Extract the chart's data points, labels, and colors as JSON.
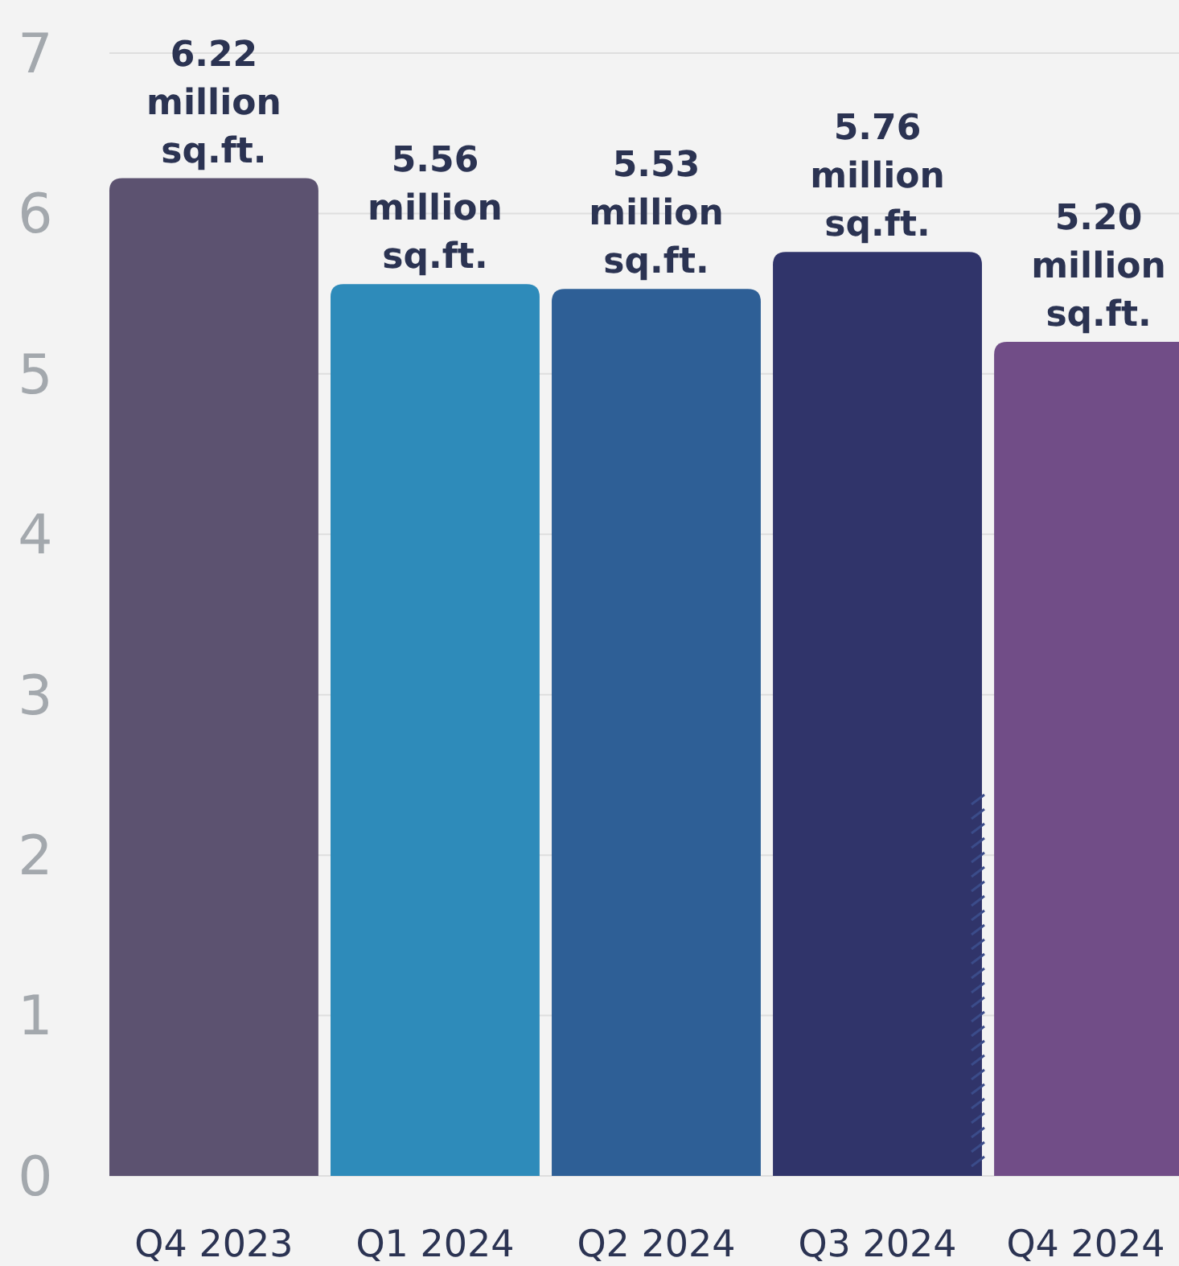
{
  "chart_data": {
    "type": "bar",
    "categories": [
      "Q4 2023",
      "Q1 2024",
      "Q2 2024",
      "Q3 2024",
      "Q4 2024"
    ],
    "values": [
      6.22,
      5.56,
      5.53,
      5.76,
      5.2
    ],
    "colors": [
      "#5c5270",
      "#2e8bba",
      "#2e5f96",
      "#30346a",
      "#714d87"
    ],
    "value_labels": [
      "6.22 million sq.ft.",
      "5.56 million sq.ft.",
      "5.53 million sq.ft.",
      "5.76 million sq.ft.",
      "5.20 million sq.ft."
    ],
    "ylim": [
      0,
      7
    ],
    "yticks": [
      0,
      1,
      2,
      3,
      4,
      5,
      6,
      7
    ],
    "grid": "y"
  }
}
